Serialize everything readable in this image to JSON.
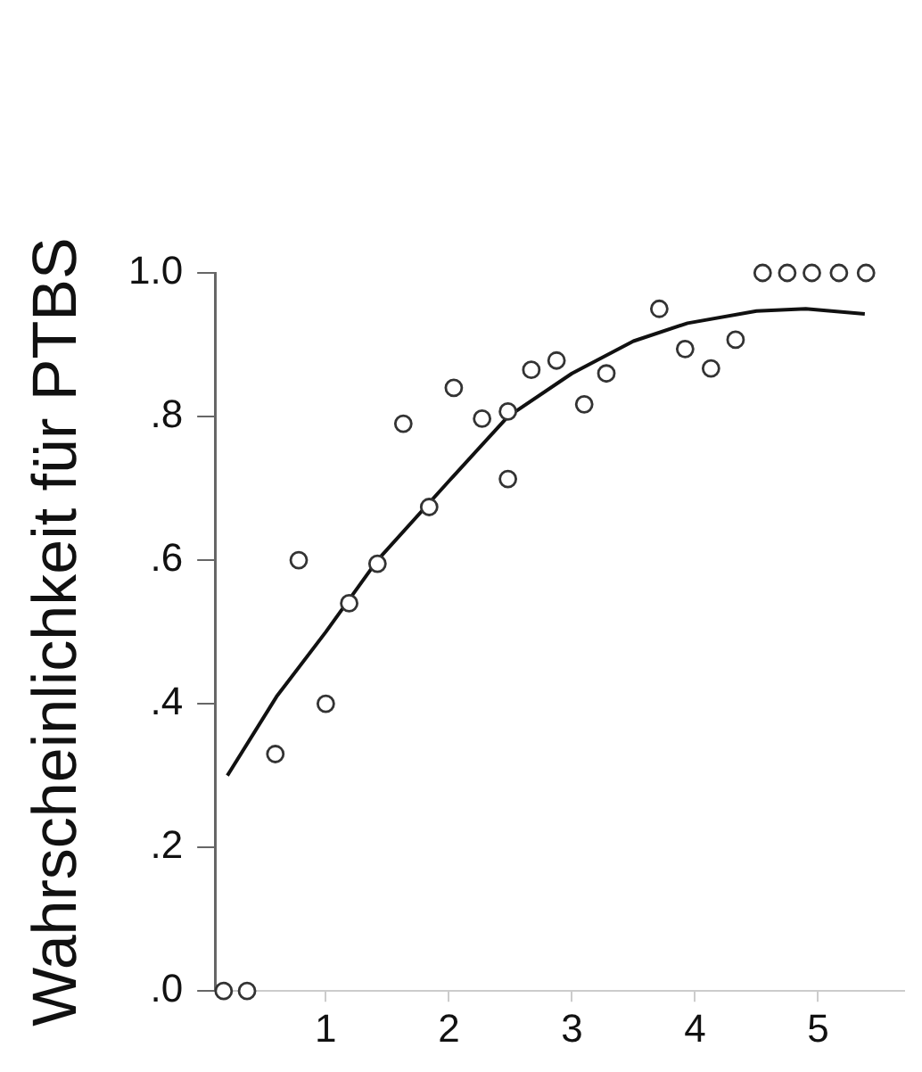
{
  "chart_data": {
    "type": "scatter",
    "ylabel": "Wahrscheinlichkeit für PTBS",
    "xlim": [
      0.1,
      5.7
    ],
    "xticks": [
      1,
      2,
      3,
      4,
      5
    ],
    "ylim": [
      0,
      1
    ],
    "yticks": [
      {
        "value": 0,
        "label": ".0"
      },
      {
        "value": 0.2,
        "label": ".2"
      },
      {
        "value": 0.4,
        "label": ".4"
      },
      {
        "value": 0.6,
        "label": ".6"
      },
      {
        "value": 0.8,
        "label": ".8"
      },
      {
        "value": 1,
        "label": "1.0"
      }
    ],
    "grid": false,
    "legend": false,
    "marker": "circle",
    "series": [
      {
        "color": "#333333",
        "x": [
          0.17,
          0.36,
          0.59,
          0.78,
          1.0,
          1.19,
          1.42,
          1.63,
          1.84,
          2.04,
          2.27,
          2.48,
          2.48,
          2.67,
          2.875,
          3.1,
          3.28,
          3.71,
          3.92,
          4.13,
          4.33,
          4.55,
          4.75,
          4.95,
          5.17,
          5.39
        ],
        "values": [
          0,
          0,
          0.33,
          0.6,
          0.4,
          0.54,
          0.595,
          0.79,
          0.674,
          0.84,
          0.797,
          0.713,
          0.807,
          0.865,
          0.878,
          0.817,
          0.86,
          0.95,
          0.894,
          0.867,
          0.907,
          1.0,
          1.0,
          1.0,
          1.0,
          1.0
        ]
      },
      {
        "type": "line",
        "color": "#111111",
        "marker": "none",
        "line_style": "solid",
        "x": [
          0.2,
          0.6,
          1.0,
          1.42,
          2.0,
          2.48,
          3.0,
          3.5,
          3.94,
          4.5,
          4.9,
          5.38
        ],
        "values": [
          0.3,
          0.41,
          0.5,
          0.6,
          0.71,
          0.8,
          0.86,
          0.905,
          0.93,
          0.947,
          0.95,
          0.943
        ]
      }
    ]
  }
}
